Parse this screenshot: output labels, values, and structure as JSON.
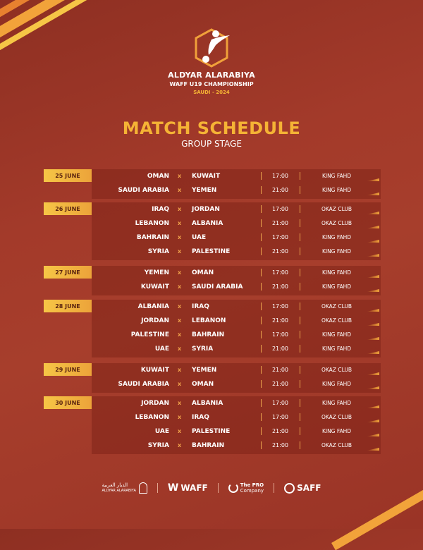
{
  "header": {
    "line1": "ALDYAR ALARABIYA",
    "line2": "WAFF U19 CHAMPIONSHIP",
    "line3": "SAUDI - 2024"
  },
  "title": "MATCH SCHEDULE",
  "subtitle": "GROUP STAGE",
  "colors": {
    "accent": "#f5b335",
    "background": "#a33a2a"
  },
  "separator": "x",
  "days": [
    {
      "date": "25 JUNE",
      "matches": [
        {
          "home": "OMAN",
          "away": "KUWAIT",
          "time": "17:00",
          "venue": "KING FAHD"
        },
        {
          "home": "SAUDI ARABIA",
          "away": "YEMEN",
          "time": "21:00",
          "venue": "KING FAHD"
        }
      ]
    },
    {
      "date": "26 JUNE",
      "matches": [
        {
          "home": "IRAQ",
          "away": "JORDAN",
          "time": "17:00",
          "venue": "OKAZ CLUB"
        },
        {
          "home": "LEBANON",
          "away": "ALBANIA",
          "time": "21:00",
          "venue": "OKAZ CLUB"
        },
        {
          "home": "BAHRAIN",
          "away": "UAE",
          "time": "17:00",
          "venue": "KING FAHD"
        },
        {
          "home": "SYRIA",
          "away": "PALESTINE",
          "time": "21:00",
          "venue": "KING FAHD"
        }
      ]
    },
    {
      "date": "27 JUNE",
      "matches": [
        {
          "home": "YEMEN",
          "away": "OMAN",
          "time": "17:00",
          "venue": "KING FAHD"
        },
        {
          "home": "KUWAIT",
          "away": "SAUDI ARABIA",
          "time": "21:00",
          "venue": "KING FAHD"
        }
      ]
    },
    {
      "date": "28 JUNE",
      "matches": [
        {
          "home": "ALBANIA",
          "away": "IRAQ",
          "time": "17:00",
          "venue": "OKAZ CLUB"
        },
        {
          "home": "JORDAN",
          "away": "LEBANON",
          "time": "21:00",
          "venue": "OKAZ CLUB"
        },
        {
          "home": "PALESTINE",
          "away": "BAHRAIN",
          "time": "17:00",
          "venue": "KING FAHD"
        },
        {
          "home": "UAE",
          "away": "SYRIA",
          "time": "21:00",
          "venue": "KING FAHD"
        }
      ]
    },
    {
      "date": "29 JUNE",
      "matches": [
        {
          "home": "KUWAIT",
          "away": "YEMEN",
          "time": "21:00",
          "venue": "OKAZ CLUB"
        },
        {
          "home": "SAUDI ARABIA",
          "away": "OMAN",
          "time": "21:00",
          "venue": "KING FAHD"
        }
      ]
    },
    {
      "date": "30 JUNE",
      "matches": [
        {
          "home": "JORDAN",
          "away": "ALBANIA",
          "time": "17:00",
          "venue": "KING FAHD"
        },
        {
          "home": "LEBANON",
          "away": "IRAQ",
          "time": "17:00",
          "venue": "OKAZ CLUB"
        },
        {
          "home": "UAE",
          "away": "PALESTINE",
          "time": "21:00",
          "venue": "KING FAHD"
        },
        {
          "home": "SYRIA",
          "away": "BAHRAIN",
          "time": "21:00",
          "venue": "OKAZ CLUB"
        }
      ]
    }
  ],
  "footer": {
    "sponsor1_ar": "الديار العربية",
    "sponsor1_en": "ALDYAR ALARABIYA",
    "sponsor2": "WAFF",
    "sponsor3a": "The PRO",
    "sponsor3b": "Company",
    "sponsor4": "SAFF"
  }
}
